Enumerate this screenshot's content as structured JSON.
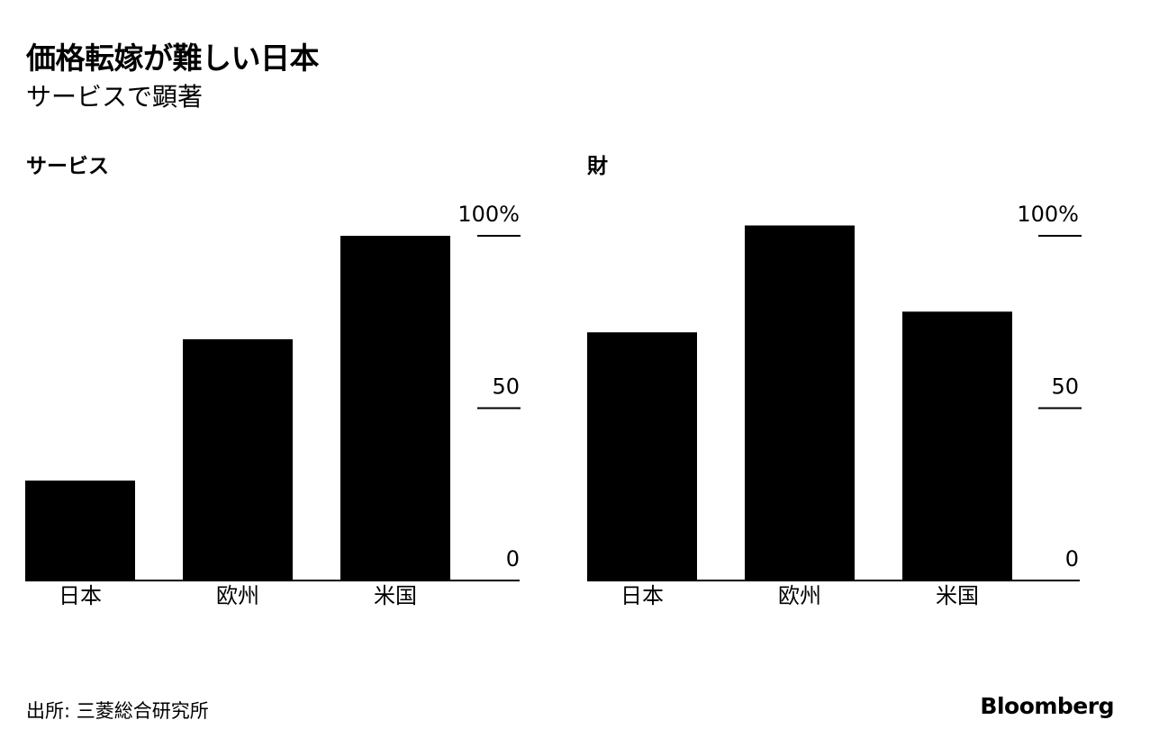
{
  "title": "価格転嫁が難しい日本",
  "subtitle": "サービスで顕著",
  "source": "出所: 三菱総合研究所",
  "brand": "Bloomberg",
  "colors": {
    "bar": "#000000",
    "axis": "#000000",
    "text": "#000000",
    "background": "#ffffff"
  },
  "chart_data": [
    {
      "type": "bar",
      "title": "サービス",
      "categories": [
        "日本",
        "欧州",
        "米国"
      ],
      "values": [
        29,
        70,
        100
      ],
      "ylim": [
        0,
        100
      ],
      "yticks": [
        0,
        50,
        100
      ],
      "ytick_labels": [
        "0",
        "50",
        "100%"
      ],
      "yaxis_position": "right",
      "grid": false,
      "xlabel": "",
      "ylabel": ""
    },
    {
      "type": "bar",
      "title": "財",
      "categories": [
        "日本",
        "欧州",
        "米国"
      ],
      "values": [
        72,
        103,
        78
      ],
      "ylim": [
        0,
        100
      ],
      "yticks": [
        0,
        50,
        100
      ],
      "ytick_labels": [
        "0",
        "50",
        "100%"
      ],
      "yaxis_position": "right",
      "grid": false,
      "xlabel": "",
      "ylabel": ""
    }
  ]
}
